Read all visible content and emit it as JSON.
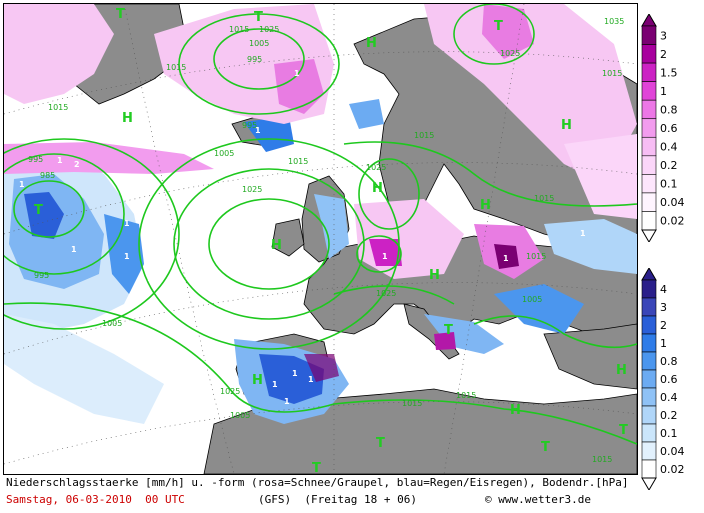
{
  "caption": {
    "line1": "Niederschlagsstaerke [mm/h] u. -form (rosa=Schnee/Graupel, blau=Regen/Eisregen), Bodendr.[hPa]",
    "date_text": "Samstag, 06-03-2010  00 UTC",
    "model_text": "(GFS)  (Freitag 18 + 06)",
    "credit_text": "© www.wetter3.de"
  },
  "legend_snow": {
    "labels": [
      "3",
      "2",
      "1.5",
      "1",
      "0.8",
      "0.6",
      "0.4",
      "0.2",
      "0.1",
      "0.04",
      "0.02"
    ],
    "colors": [
      "#7a0072",
      "#a8009e",
      "#cc22c4",
      "#e044d8",
      "#ec77e6",
      "#f29cee",
      "#f7bdf4",
      "#fbd6f9",
      "#fde6fc",
      "#fef4fe",
      "#ffffff"
    ]
  },
  "legend_rain": {
    "labels": [
      "4",
      "3",
      "2",
      "1",
      "0.8",
      "0.6",
      "0.4",
      "0.2",
      "0.1",
      "0.04",
      "0.02"
    ],
    "colors": [
      "#2a1f8a",
      "#3a46b8",
      "#2a5fd8",
      "#2f7ce8",
      "#4b96ee",
      "#6cabf2",
      "#8fc2f6",
      "#b0d6f9",
      "#cbe6fb",
      "#e2f1fd",
      "#ffffff"
    ]
  },
  "map_labels": {
    "highs": [
      "H",
      "H",
      "H",
      "H",
      "H",
      "H",
      "H",
      "H",
      "H",
      "H"
    ],
    "lows": [
      "T",
      "T",
      "T",
      "T",
      "T",
      "T",
      "T",
      "T",
      "T"
    ],
    "isobars": [
      "1015",
      "1005",
      "995",
      "1015",
      "1015",
      "995",
      "1005",
      "1015",
      "1025",
      "1025",
      "1015",
      "1025",
      "1015",
      "1015",
      "995",
      "985",
      "995",
      "1005",
      "1005",
      "1025",
      "1015",
      "1015",
      "1015",
      "1035",
      "1025",
      "1015",
      "1005",
      "1025"
    ],
    "rates": [
      "1",
      "2",
      "1",
      "1",
      "1",
      "1",
      "1",
      "1",
      "1",
      "1",
      "1",
      "1",
      "1",
      "1",
      "1",
      "1"
    ]
  },
  "colors": {
    "sea": "#ffffff",
    "land": "#8c8c8c",
    "isobar": "#1ec81e",
    "snow_light": "#f7c7f3",
    "snow_mid": "#e87ce2",
    "snow_dark": "#b318a8",
    "rain_light": "#cfe6fb",
    "rain_mid": "#7fb6f3",
    "rain_dark": "#2a5fd8"
  }
}
